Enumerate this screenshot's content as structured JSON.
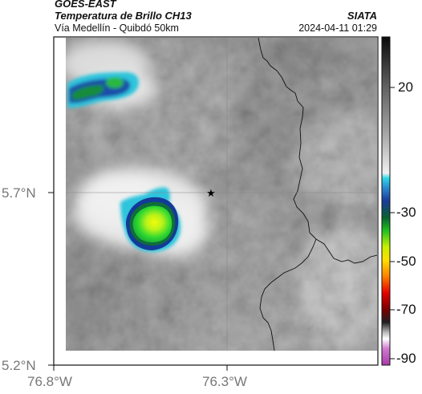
{
  "header": {
    "satellite": "GOES-EAST",
    "product": "Temperatura de Brillo CH13",
    "region": "Vía Medellín - Quibdó 50km",
    "source": "SIATA",
    "datetime": "2024-04-11 01:29"
  },
  "axes": {
    "lat_ticks": [
      "5.7°N",
      "5.2°N"
    ],
    "lon_ticks": [
      "76.8°W",
      "76.3°W"
    ]
  },
  "colorbar": {
    "ticks": [
      "20",
      "-30",
      "-50",
      "-70",
      "-90"
    ]
  },
  "marker": {
    "symbol": "★",
    "name": "reference-point"
  },
  "colors": {
    "warm_gray_low": "#5f5f5f",
    "warm_gray_high": "#ededed",
    "cold_cyan": "#1ec8e0",
    "cold_blue": "#103a96",
    "cold_green": "#2fe03c",
    "cold_yellow": "#e8f80a"
  }
}
